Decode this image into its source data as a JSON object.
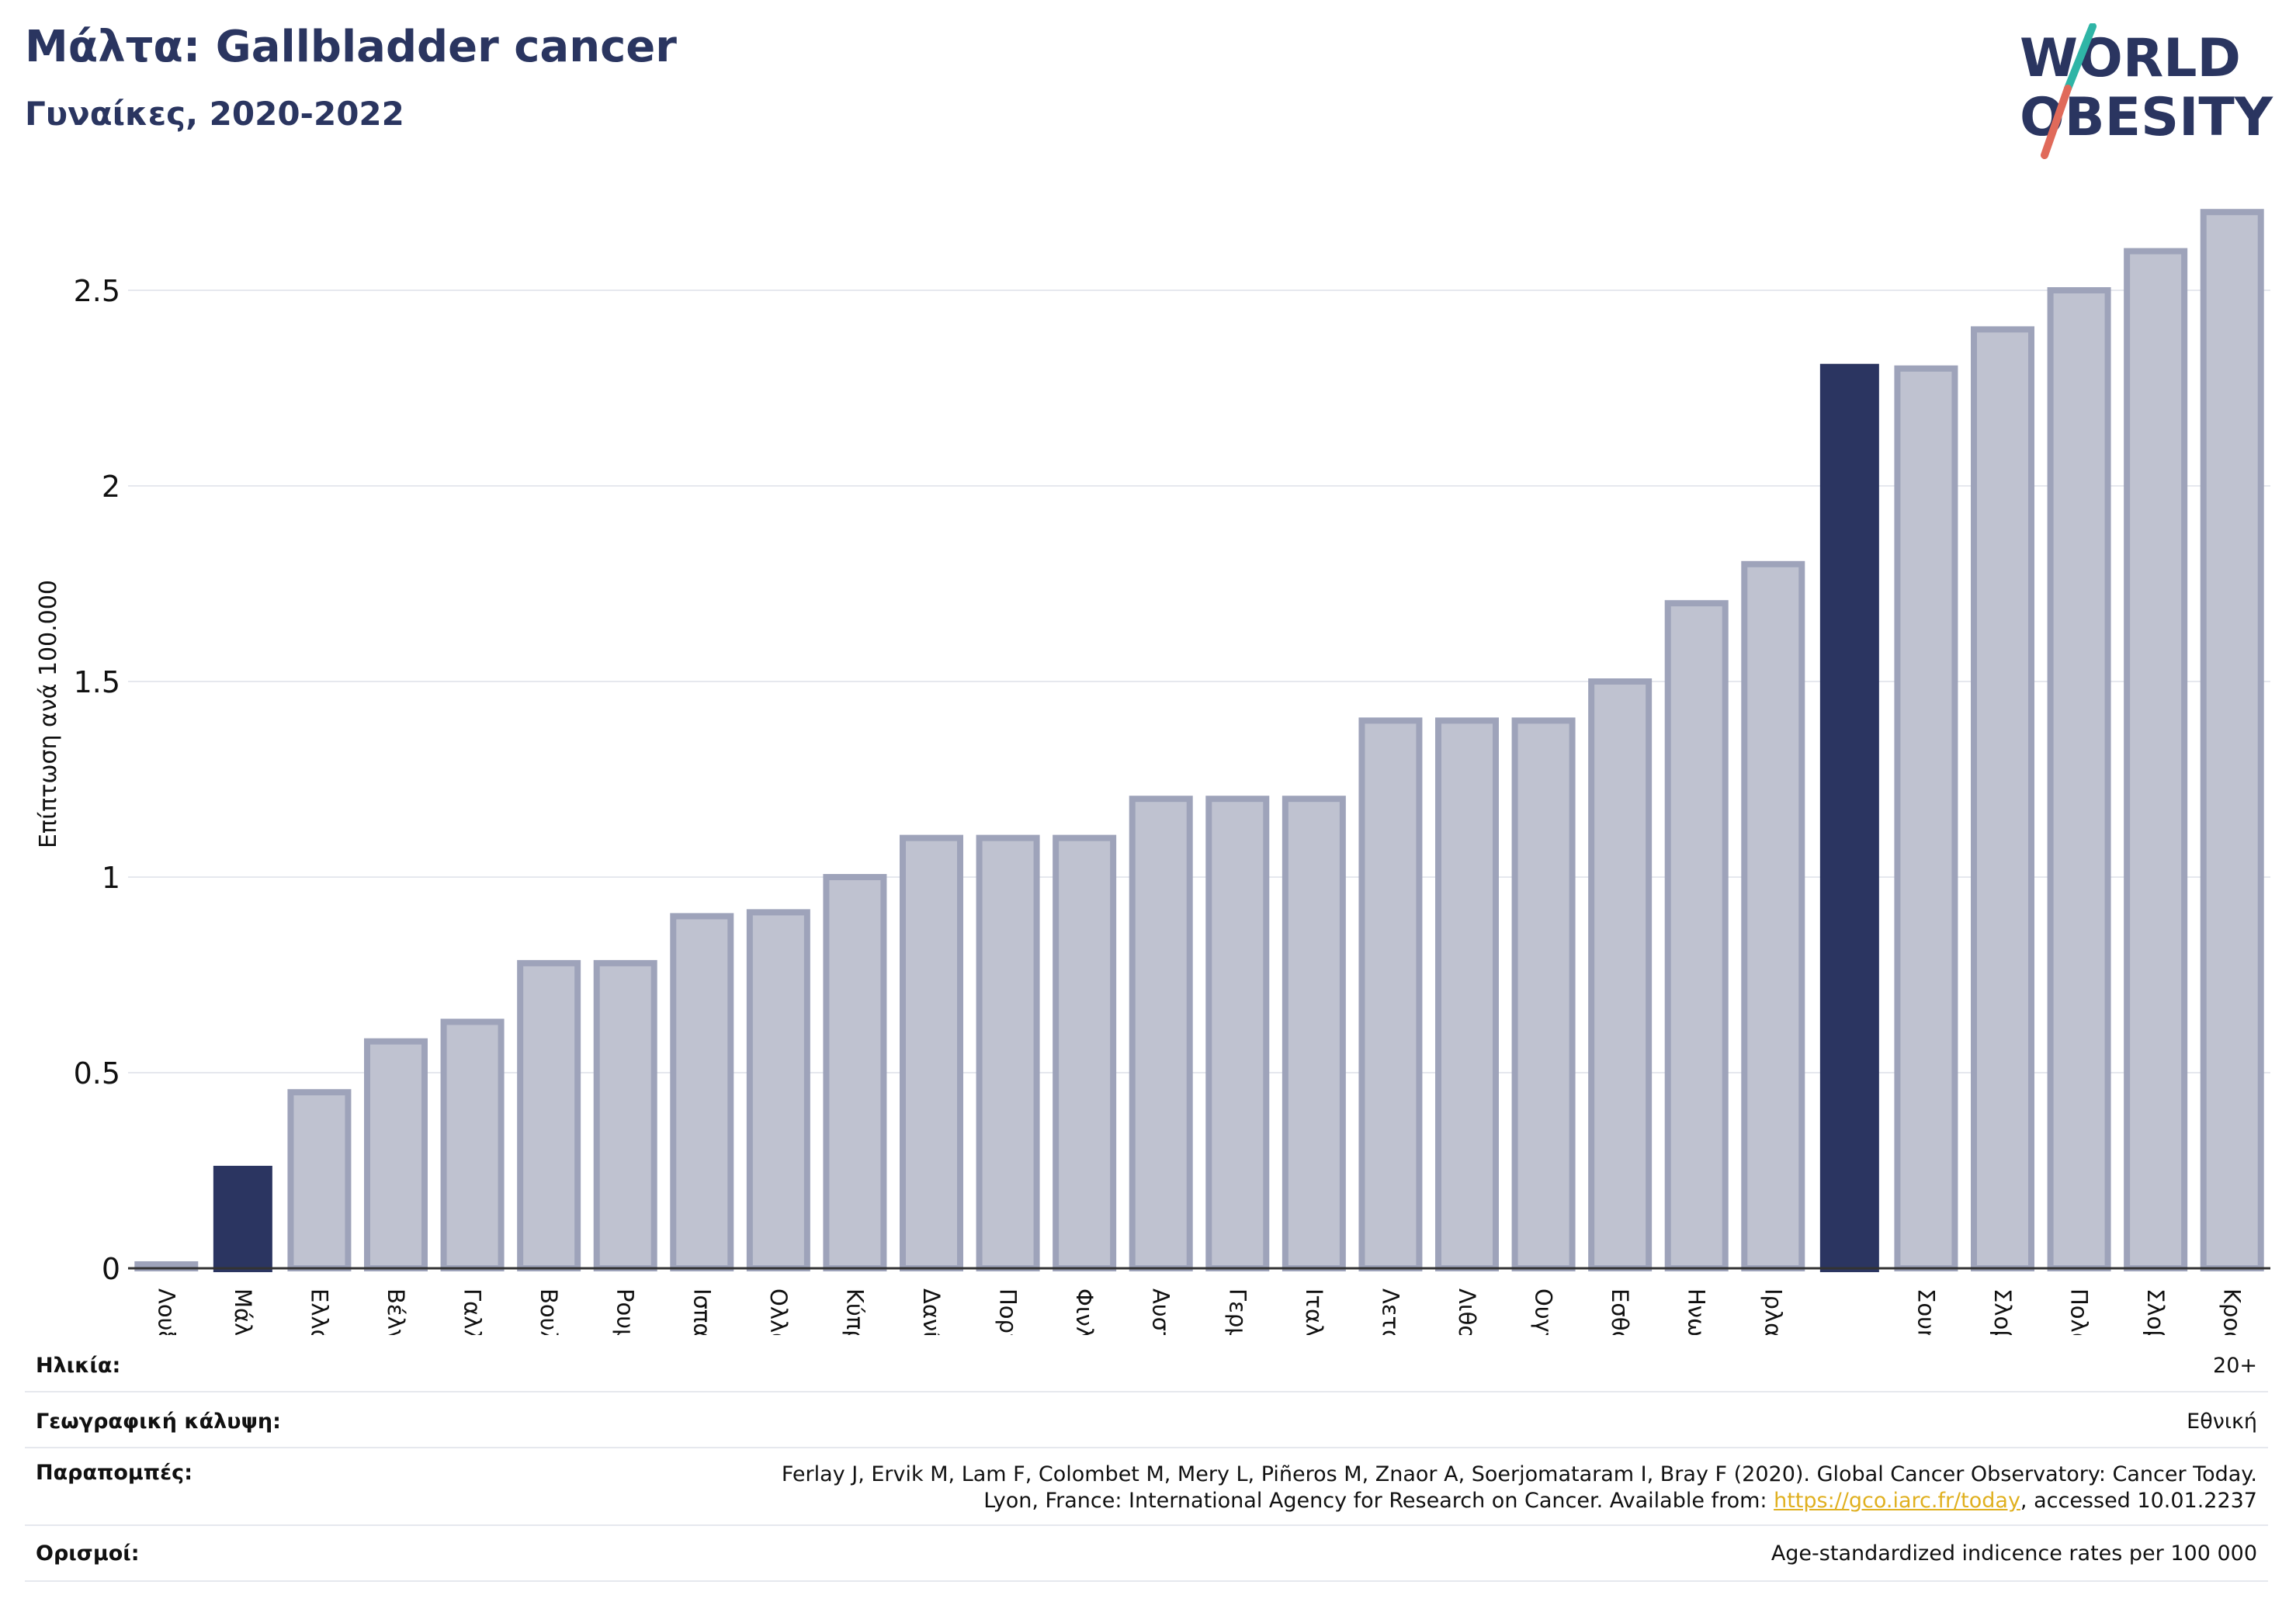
{
  "header": {
    "title": "Μάλτα: Gallbladder cancer",
    "subtitle": "Γυναίκες, 2020-2022"
  },
  "logo": {
    "line1": "WORLD",
    "line2": "OBESITY"
  },
  "colors": {
    "highlight": "#2b3561",
    "bar_fill": "#bfc2d0",
    "bar_stroke": "#9ea3ba",
    "grid": "#e6e8ee",
    "logo_teal": "#2fb5a6",
    "logo_red": "#e06a5a"
  },
  "chart_data": {
    "type": "bar",
    "ylabel": "Επίπτωση ανά 100.000",
    "ylim": [
      0,
      2.75
    ],
    "yticks": [
      0,
      0.5,
      1,
      1.5,
      2,
      2.5
    ],
    "ytick_labels": [
      "0",
      "0.5",
      "1",
      "1.5",
      "2",
      "2.5"
    ],
    "grid": true,
    "categories": [
      "Λουξεμβούργο",
      "Μάλτα",
      "Ελλάδα",
      "Βέλγιο",
      "Γαλλία",
      "Βουλγαρία",
      "Ρουμανία",
      "Ισπανία",
      "Ολλανδία",
      "Κύπρος",
      "Δανία",
      "Πορτογαλία",
      "Φινλανδία",
      "Αυστρία",
      "Γερμανία",
      "Ιταλία",
      "Λετονία",
      "Λιθουανία",
      "Ουγγαρία",
      "Εσθονία",
      "Ηνωμένο Βασίλειο",
      "Ιρλανδία",
      "",
      "Σουηδία",
      "Σλοβενία",
      "Πολωνία",
      "Σλοβακία",
      "Κροατία"
    ],
    "values": [
      0.01,
      0.26,
      0.45,
      0.58,
      0.63,
      0.78,
      0.78,
      0.9,
      0.91,
      1.0,
      1.1,
      1.1,
      1.1,
      1.2,
      1.2,
      1.2,
      1.4,
      1.4,
      1.4,
      1.5,
      1.7,
      1.8,
      2.31,
      2.3,
      2.4,
      2.5,
      2.6,
      2.7
    ],
    "highlighted": [
      1,
      22
    ]
  },
  "meta": {
    "age_label": "Ηλικία:",
    "age_value": "20+",
    "coverage_label": "Γεωγραφική κάλυψη:",
    "coverage_value": "Εθνική",
    "refs_label": "Παραπομπές:",
    "refs_line1": "Ferlay J, Ervik M, Lam F, Colombet M, Mery L, Piñeros M, Znaor A, Soerjomataram I, Bray F (2020). Global Cancer Observatory: Cancer Today.",
    "refs_line2_pre": "Lyon, France: International Agency for Research on Cancer. Available from: ",
    "refs_link": "https://gco.iarc.fr/today",
    "refs_line2_post": ", accessed 10.01.2237",
    "defs_label": "Ορισμοί:",
    "defs_value": "Age-standardized indicence rates per 100 000"
  }
}
